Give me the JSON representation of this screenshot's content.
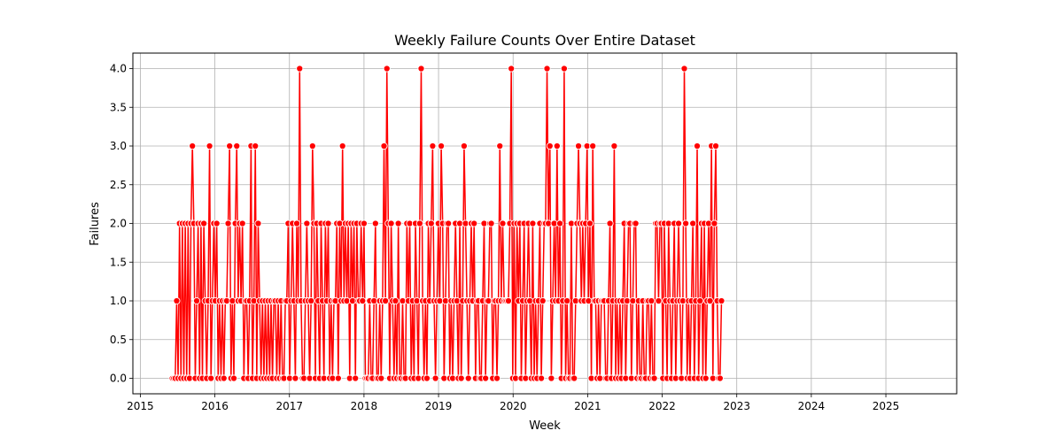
{
  "chart_data": {
    "type": "line",
    "title": "Weekly Failure Counts Over Entire Dataset",
    "xlabel": "Week",
    "ylabel": "Failures",
    "xlim": [
      2014.9,
      2025.95
    ],
    "ylim": [
      -0.2,
      4.2
    ],
    "x_ticks": [
      "2015",
      "2016",
      "2017",
      "2018",
      "2019",
      "2020",
      "2021",
      "2022",
      "2023",
      "2024",
      "2025"
    ],
    "y_ticks": [
      "0.0",
      "0.5",
      "1.0",
      "1.5",
      "2.0",
      "2.5",
      "3.0",
      "3.5",
      "4.0"
    ],
    "grid": true,
    "line_color": "#ff0000",
    "marker": "circle",
    "start_year": 2015.43,
    "week_step": 0.01918,
    "series": [
      {
        "values": [
          0,
          0,
          0,
          1,
          0,
          2,
          0,
          2,
          0,
          2,
          0,
          2,
          0,
          2,
          3,
          2,
          0,
          1,
          2,
          0,
          2,
          0,
          2,
          1,
          0,
          1,
          3,
          0,
          1,
          2,
          1,
          2,
          0,
          1,
          0,
          1,
          0,
          1,
          1,
          2,
          3,
          0,
          1,
          0,
          2,
          3,
          1,
          2,
          1,
          2,
          0,
          1,
          1,
          0,
          1,
          3,
          0,
          1,
          3,
          0,
          2,
          1,
          0,
          1,
          0,
          1,
          0,
          1,
          0,
          1,
          0,
          1,
          1,
          0,
          1,
          0,
          1,
          0,
          0,
          1,
          1,
          2,
          0,
          1,
          2,
          1,
          0,
          2,
          1,
          4,
          1,
          0,
          0,
          1,
          2,
          1,
          0,
          1,
          3,
          2,
          0,
          2,
          1,
          0,
          2,
          1,
          0,
          2,
          1,
          2,
          0,
          1,
          0,
          1,
          1,
          2,
          0,
          2,
          1,
          3,
          1,
          2,
          1,
          2,
          0,
          2,
          1,
          2,
          0,
          2,
          1,
          1,
          2,
          1,
          2,
          0,
          0,
          0,
          1,
          0,
          0,
          1,
          2,
          0,
          0,
          1,
          0,
          1,
          3,
          1,
          4,
          2,
          0,
          2,
          1,
          0,
          1,
          0,
          2,
          0,
          0,
          1,
          0,
          0,
          2,
          1,
          2,
          0,
          1,
          0,
          2,
          1,
          0,
          2,
          4,
          1,
          0,
          1,
          0,
          2,
          1,
          2,
          3,
          1,
          0,
          1,
          2,
          1,
          3,
          2,
          0,
          1,
          2,
          2,
          0,
          1,
          0,
          1,
          2,
          1,
          0,
          2,
          0,
          1,
          3,
          2,
          1,
          0,
          1,
          2,
          1,
          2,
          0,
          1,
          1,
          0,
          0,
          1,
          2,
          0,
          1,
          1,
          2,
          2,
          0,
          1,
          1,
          0,
          1,
          3,
          1,
          2,
          1,
          1,
          1,
          1,
          2,
          4,
          0,
          2,
          0,
          2,
          1,
          2,
          0,
          1,
          2,
          0,
          1,
          2,
          1,
          0,
          2,
          0,
          1,
          0,
          1,
          2,
          0,
          1,
          2,
          2,
          4,
          2,
          3,
          0,
          1,
          2,
          1,
          3,
          1,
          2,
          0,
          1,
          4,
          0,
          1,
          0,
          0,
          2,
          0,
          0,
          1,
          2,
          3,
          2,
          1,
          2,
          1,
          2,
          3,
          1,
          2,
          0,
          3,
          1,
          1,
          0,
          1,
          0,
          1,
          1,
          1,
          0,
          0,
          1,
          2,
          0,
          1,
          3,
          0,
          1,
          0,
          1,
          0,
          1,
          2,
          0,
          1,
          2,
          2,
          0,
          1,
          2,
          2,
          0,
          1,
          0,
          0,
          1,
          0,
          0,
          1,
          1,
          0,
          1,
          0,
          0,
          2,
          2,
          1,
          2,
          2,
          0,
          2,
          1,
          0,
          2,
          1,
          0,
          1,
          2,
          0,
          1,
          2,
          1,
          0,
          1,
          4,
          2,
          0,
          1,
          0,
          1,
          2,
          0,
          1,
          3,
          0,
          1,
          2,
          0,
          2,
          0,
          1,
          2,
          1,
          3,
          0,
          2,
          3,
          1,
          0,
          0,
          1
        ]
      }
    ]
  }
}
